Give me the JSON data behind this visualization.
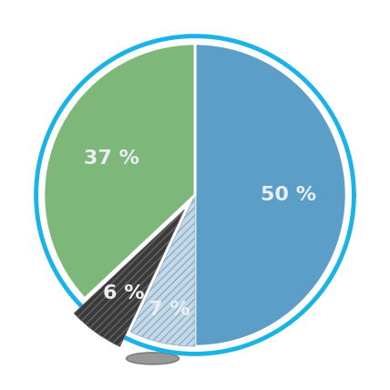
{
  "slices": [
    50,
    7,
    6,
    37
  ],
  "colors": [
    "#5b9fc9",
    "#c5d8e8",
    "#3a3a3a",
    "#7db87a"
  ],
  "labels": [
    "50 %",
    "7 %",
    "6 %",
    "37 %"
  ],
  "explode": [
    0,
    0,
    0.12,
    0
  ],
  "hatch": [
    null,
    "////",
    "////",
    null
  ],
  "text_color": "#e8eef4",
  "border_color": "#1ab3e8",
  "border_width": 3.5,
  "background_color": "#ffffff",
  "label_fontsize": 16,
  "label_fontweight": "bold",
  "startangle": 90,
  "label_radii": [
    0.62,
    0.78,
    0.68,
    0.6
  ],
  "wedge_linewidth": 2.0,
  "wedge_edgecolor": "white"
}
